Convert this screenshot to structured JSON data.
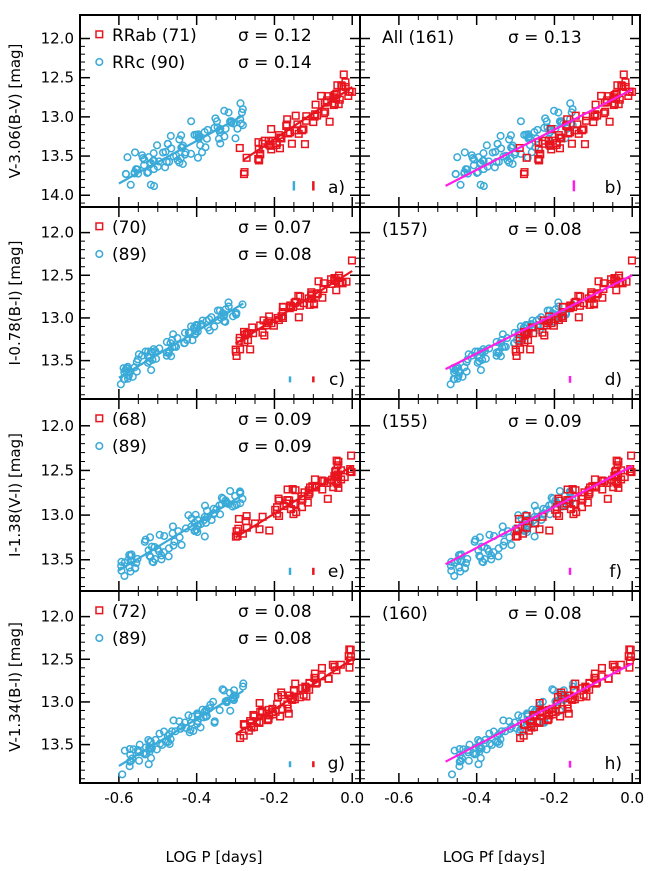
{
  "colors": {
    "rrab": "#e8141e",
    "rrc": "#3aaad8",
    "combined_fit": "#ff1ee6",
    "frame": "#000000"
  },
  "chart_data": {
    "type": "scatter",
    "layout": "4x2 grid of scatter panels",
    "xlabels": [
      "LOG P [days]",
      "LOG Pf [days]"
    ],
    "xlim": [
      -0.7,
      0.02
    ],
    "xticks": [
      -0.6,
      -0.4,
      -0.2,
      0.0
    ],
    "xtick_labels": [
      "-0.6",
      "-0.4",
      "-0.2",
      "0.0"
    ],
    "series_legend": [
      "RRab",
      "RRc"
    ],
    "rows": [
      {
        "ylabel": "V-3.06(B-V) [mag]",
        "ylim": [
          14.15,
          11.7
        ],
        "yticks": [
          12.0,
          12.5,
          13.0,
          13.5,
          14.0
        ],
        "ytick_labels": [
          "12.0",
          "12.5",
          "13.0",
          "13.5",
          "14.0"
        ],
        "left": {
          "rrab_count": "RRab (71)",
          "rrc_count": "RRc (90)",
          "rrab_sigma": "σ = 0.12",
          "rrc_sigma": "σ = 0.14",
          "panel_label": "a)",
          "rrab_fit": {
            "x": [
              -0.28,
              0.0
            ],
            "y": [
              13.55,
              12.62
            ]
          },
          "rrc_fit": {
            "x": [
              -0.6,
              -0.28
            ],
            "y": [
              13.85,
              12.98
            ]
          }
        },
        "right": {
          "total_count": "All (161)",
          "sigma": "σ = 0.13",
          "panel_label": "b)",
          "combined_fit": {
            "x": [
              -0.48,
              0.0
            ],
            "y": [
              13.88,
              12.65
            ]
          }
        },
        "error_bars": {
          "rrc": {
            "x": -0.15,
            "y": 13.88,
            "half": 0.06
          },
          "rrab": {
            "x": -0.1,
            "y": 13.88,
            "half": 0.06
          },
          "combined": {
            "x": -0.15,
            "y": 13.88,
            "half": 0.07
          }
        },
        "seed": 11
      },
      {
        "ylabel": "I-0.78(B-I) [mag]",
        "ylim": [
          13.95,
          11.7
        ],
        "yticks": [
          12.0,
          12.5,
          13.0,
          13.5
        ],
        "ytick_labels": [
          "12.0",
          "12.5",
          "13.0",
          "13.5"
        ],
        "left": {
          "rrab_count": "(70)",
          "rrc_count": "(89)",
          "rrab_sigma": "σ = 0.07",
          "rrc_sigma": "σ = 0.08",
          "panel_label": "c)",
          "rrab_fit": {
            "x": [
              -0.3,
              0.0
            ],
            "y": [
              13.3,
              12.45
            ]
          },
          "rrc_fit": {
            "x": [
              -0.6,
              -0.28
            ],
            "y": [
              13.7,
              12.83
            ]
          }
        },
        "right": {
          "total_count": "(157)",
          "sigma": "σ = 0.08",
          "panel_label": "d)",
          "combined_fit": {
            "x": [
              -0.48,
              0.0
            ],
            "y": [
              13.6,
              12.5
            ]
          }
        },
        "error_bars": {
          "rrc": {
            "x": -0.16,
            "y": 13.72,
            "half": 0.035
          },
          "rrab": {
            "x": -0.1,
            "y": 13.72,
            "half": 0.035
          },
          "combined": {
            "x": -0.16,
            "y": 13.72,
            "half": 0.04
          }
        },
        "seed": 23
      },
      {
        "ylabel": "I-1.38(V-I) [mag]",
        "ylim": [
          13.85,
          11.7
        ],
        "yticks": [
          12.0,
          12.5,
          13.0,
          13.5
        ],
        "ytick_labels": [
          "12.0",
          "12.5",
          "13.0",
          "13.5"
        ],
        "left": {
          "rrab_count": "(68)",
          "rrc_count": "(89)",
          "rrab_sigma": "σ = 0.09",
          "rrc_sigma": "σ = 0.09",
          "panel_label": "e)",
          "rrab_fit": {
            "x": [
              -0.3,
              0.0
            ],
            "y": [
              13.25,
              12.45
            ]
          },
          "rrc_fit": {
            "x": [
              -0.6,
              -0.28
            ],
            "y": [
              13.62,
              12.77
            ]
          }
        },
        "right": {
          "total_count": "(155)",
          "sigma": "σ = 0.09",
          "panel_label": "f)",
          "combined_fit": {
            "x": [
              -0.48,
              0.0
            ],
            "y": [
              13.55,
              12.45
            ]
          }
        },
        "error_bars": {
          "rrc": {
            "x": -0.16,
            "y": 13.63,
            "half": 0.04
          },
          "rrab": {
            "x": -0.1,
            "y": 13.63,
            "half": 0.04
          },
          "combined": {
            "x": -0.16,
            "y": 13.63,
            "half": 0.04
          }
        },
        "seed": 37
      },
      {
        "ylabel": "V-1.34(B-I) [mag]",
        "ylim": [
          13.95,
          11.7
        ],
        "yticks": [
          12.0,
          12.5,
          13.0,
          13.5
        ],
        "ytick_labels": [
          "12.0",
          "12.5",
          "13.0",
          "13.5"
        ],
        "left": {
          "rrab_count": "(72)",
          "rrc_count": "(89)",
          "rrab_sigma": "σ = 0.08",
          "rrc_sigma": "σ = 0.08",
          "panel_label": "g)",
          "rrab_fit": {
            "x": [
              -0.3,
              0.0
            ],
            "y": [
              13.38,
              12.5
            ]
          },
          "rrc_fit": {
            "x": [
              -0.6,
              -0.28
            ],
            "y": [
              13.75,
              12.87
            ]
          }
        },
        "right": {
          "total_count": "(160)",
          "sigma": "σ = 0.08",
          "panel_label": "h)",
          "combined_fit": {
            "x": [
              -0.48,
              0.0
            ],
            "y": [
              13.7,
              12.55
            ]
          }
        },
        "error_bars": {
          "rrc": {
            "x": -0.16,
            "y": 13.73,
            "half": 0.035
          },
          "rrab": {
            "x": -0.1,
            "y": 13.73,
            "half": 0.035
          },
          "combined": {
            "x": -0.16,
            "y": 13.73,
            "half": 0.04
          }
        },
        "seed": 53
      }
    ]
  }
}
